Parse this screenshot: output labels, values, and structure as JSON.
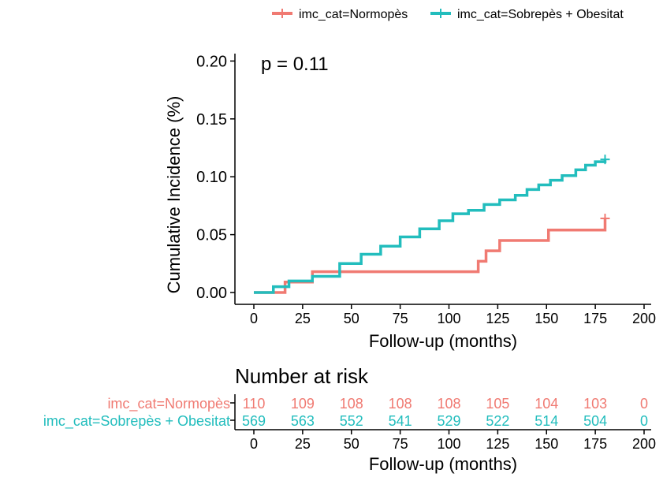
{
  "chart_data": [
    {
      "type": "line",
      "step": true,
      "annotation": "p = 0.11",
      "xlabel": "Follow-up (months)",
      "ylabel": "Cumulative Incidence (%)",
      "xlim": [
        0,
        200
      ],
      "ylim": [
        0,
        0.2
      ],
      "x_ticks": [
        0,
        25,
        50,
        75,
        100,
        125,
        150,
        175,
        200
      ],
      "x_tick_labels": [
        "0",
        "25",
        "50",
        "75",
        "100",
        "125",
        "150",
        "175",
        "200"
      ],
      "y_ticks": [
        0,
        0.05,
        0.1,
        0.15,
        0.2
      ],
      "y_tick_labels": [
        "0.00",
        "0.05",
        "0.10",
        "0.15",
        "0.20"
      ],
      "grid": false,
      "legend_position": "top",
      "series": [
        {
          "name": "imc_cat=Normopès",
          "color": "#F07A72",
          "x": [
            0,
            8,
            16,
            30,
            111,
            115,
            119,
            126,
            151,
            180
          ],
          "y": [
            0,
            0,
            0.009,
            0.018,
            0.018,
            0.027,
            0.036,
            0.045,
            0.054,
            0.064
          ]
        },
        {
          "name": "imc_cat=Sobrepès + Obesitat",
          "color": "#22BDBD",
          "x": [
            0,
            10,
            18,
            30,
            44,
            55,
            65,
            75,
            85,
            95,
            102,
            110,
            118,
            126,
            134,
            140,
            146,
            152,
            158,
            165,
            170,
            175,
            180
          ],
          "y": [
            0,
            0.005,
            0.01,
            0.014,
            0.025,
            0.033,
            0.04,
            0.048,
            0.055,
            0.062,
            0.068,
            0.071,
            0.076,
            0.08,
            0.084,
            0.089,
            0.093,
            0.097,
            0.101,
            0.106,
            0.11,
            0.113,
            0.115
          ]
        }
      ]
    },
    {
      "type": "table",
      "title": "Number at risk",
      "xlabel": "Follow-up (months)",
      "x": [
        0,
        25,
        50,
        75,
        100,
        125,
        150,
        175,
        200
      ],
      "x_tick_labels": [
        "0",
        "25",
        "50",
        "75",
        "100",
        "125",
        "150",
        "175",
        "200"
      ],
      "rows": [
        {
          "name": "imc_cat=Normopès",
          "color": "#F07A72",
          "values": [
            "110",
            "109",
            "108",
            "108",
            "108",
            "105",
            "104",
            "103",
            "0"
          ]
        },
        {
          "name": "imc_cat=Sobrepès + Obesitat",
          "color": "#22BDBD",
          "values": [
            "569",
            "563",
            "552",
            "541",
            "529",
            "522",
            "514",
            "504",
            "0"
          ]
        }
      ]
    }
  ]
}
